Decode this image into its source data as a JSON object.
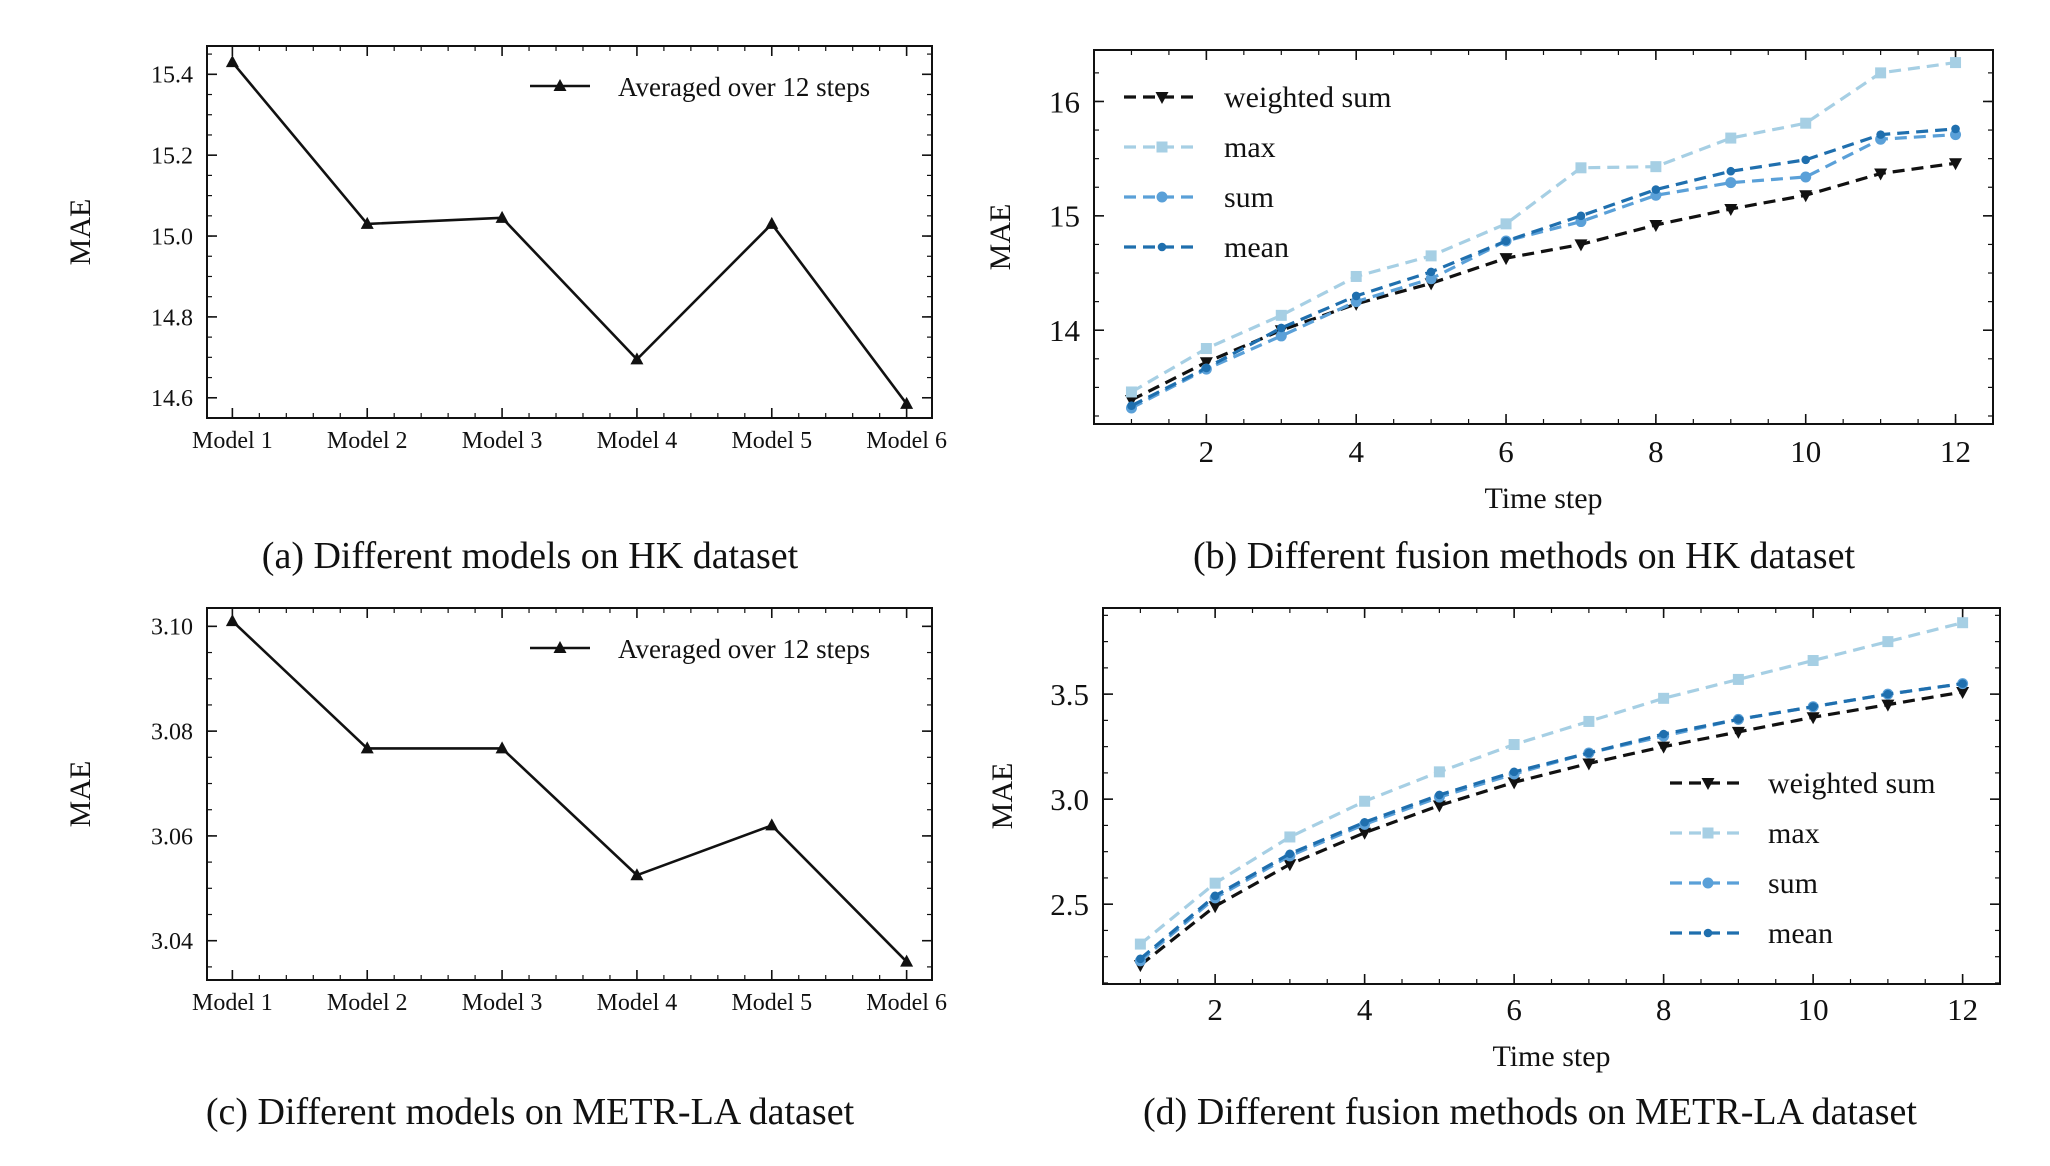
{
  "figure": {
    "captions": [
      "(a) Different models on HK dataset",
      "(b) Different fusion methods on HK dataset",
      "(c) Different models on METR-LA dataset",
      "(d) Different fusion methods on METR-LA dataset"
    ]
  },
  "chart_data": [
    {
      "id": "a",
      "type": "line",
      "caption": "(a) Different models on HK dataset",
      "categories": [
        "Model 1",
        "Model 2",
        "Model 3",
        "Model 4",
        "Model 5",
        "Model 6"
      ],
      "series": [
        {
          "name": "Averaged over 12 steps",
          "values": [
            15.43,
            15.03,
            15.045,
            14.695,
            15.03,
            14.585
          ],
          "color": "#111111",
          "marker": "triangle-up",
          "dashed": false
        }
      ],
      "xlabel": "",
      "ylabel": "MAE",
      "ylim": [
        14.55,
        15.47
      ],
      "yticks": [
        14.6,
        14.8,
        15.0,
        15.2,
        15.4
      ],
      "ytick_labels": [
        "14.6",
        "14.8",
        "15.0",
        "15.2",
        "15.4"
      ],
      "legend": "top-right",
      "grid": false
    },
    {
      "id": "b",
      "type": "line",
      "caption": "(b) Different fusion methods on HK dataset",
      "x": [
        1,
        2,
        3,
        4,
        5,
        6,
        7,
        8,
        9,
        10,
        11,
        12
      ],
      "series": [
        {
          "name": "weighted sum",
          "values": [
            13.39,
            13.72,
            14.0,
            14.23,
            14.41,
            14.63,
            14.75,
            14.92,
            15.06,
            15.18,
            15.37,
            15.46
          ],
          "color": "#111111",
          "marker": "triangle-down",
          "dashed": true
        },
        {
          "name": "max",
          "values": [
            13.46,
            13.84,
            14.13,
            14.47,
            14.65,
            14.93,
            15.42,
            15.43,
            15.68,
            15.81,
            16.25,
            16.34
          ],
          "color": "#a6cfe4",
          "marker": "square",
          "dashed": true
        },
        {
          "name": "sum",
          "values": [
            13.32,
            13.66,
            13.95,
            14.25,
            14.45,
            14.78,
            14.95,
            15.18,
            15.29,
            15.34,
            15.67,
            15.71
          ],
          "color": "#5aa0d8",
          "marker": "circle",
          "dashed": true
        },
        {
          "name": "mean",
          "values": [
            13.34,
            13.67,
            14.02,
            14.3,
            14.51,
            14.78,
            15.0,
            15.23,
            15.39,
            15.49,
            15.71,
            15.76
          ],
          "color": "#1f6fae",
          "marker": "dot",
          "dashed": true
        }
      ],
      "xlabel": "Time step",
      "ylabel": "MAE",
      "xlim": [
        0.5,
        12.5
      ],
      "ylim": [
        13.18,
        16.45
      ],
      "xticks": [
        2,
        4,
        6,
        8,
        10,
        12
      ],
      "xtick_labels": [
        "2",
        "4",
        "6",
        "8",
        "10",
        "12"
      ],
      "yticks": [
        14,
        15,
        16
      ],
      "ytick_labels": [
        "14",
        "15",
        "16"
      ],
      "legend": "top-left",
      "grid": false
    },
    {
      "id": "c",
      "type": "line",
      "caption": "(c) Different models on METR-LA dataset",
      "categories": [
        "Model 1",
        "Model 2",
        "Model 3",
        "Model 4",
        "Model 5",
        "Model 6"
      ],
      "series": [
        {
          "name": "Averaged over 12 steps",
          "values": [
            3.101,
            3.0767,
            3.0767,
            3.0525,
            3.062,
            3.036
          ],
          "color": "#111111",
          "marker": "triangle-up",
          "dashed": false
        }
      ],
      "xlabel": "",
      "ylabel": "MAE",
      "ylim": [
        3.0325,
        3.1035
      ],
      "yticks": [
        3.04,
        3.06,
        3.08,
        3.1
      ],
      "ytick_labels": [
        "3.04",
        "3.06",
        "3.08",
        "3.10"
      ],
      "legend": "top-right",
      "grid": false
    },
    {
      "id": "d",
      "type": "line",
      "caption": "(d) Different fusion methods on METR-LA dataset",
      "x": [
        1,
        2,
        3,
        4,
        5,
        6,
        7,
        8,
        9,
        10,
        11,
        12
      ],
      "series": [
        {
          "name": "weighted sum",
          "values": [
            2.21,
            2.49,
            2.69,
            2.84,
            2.97,
            3.08,
            3.17,
            3.25,
            3.32,
            3.39,
            3.45,
            3.51
          ],
          "color": "#111111",
          "marker": "triangle-down",
          "dashed": true
        },
        {
          "name": "max",
          "values": [
            2.31,
            2.6,
            2.82,
            2.99,
            3.13,
            3.26,
            3.37,
            3.48,
            3.57,
            3.66,
            3.75,
            3.84
          ],
          "color": "#a6cfe4",
          "marker": "square",
          "dashed": true
        },
        {
          "name": "sum",
          "values": [
            2.23,
            2.53,
            2.73,
            2.88,
            3.01,
            3.12,
            3.22,
            3.3,
            3.38,
            3.44,
            3.5,
            3.55
          ],
          "color": "#5aa0d8",
          "marker": "circle",
          "dashed": true
        },
        {
          "name": "mean",
          "values": [
            2.24,
            2.54,
            2.74,
            2.89,
            3.02,
            3.13,
            3.22,
            3.31,
            3.38,
            3.44,
            3.5,
            3.55
          ],
          "color": "#1f6fae",
          "marker": "dot",
          "dashed": true
        }
      ],
      "xlabel": "Time step",
      "ylabel": "MAE",
      "xlim": [
        0.5,
        12.5
      ],
      "ylim": [
        2.12,
        3.91
      ],
      "xticks": [
        2,
        4,
        6,
        8,
        10,
        12
      ],
      "xtick_labels": [
        "2",
        "4",
        "6",
        "8",
        "10",
        "12"
      ],
      "yticks": [
        2.5,
        3.0,
        3.5
      ],
      "ytick_labels": [
        "2.5",
        "3.0",
        "3.5"
      ],
      "legend": "center-right",
      "grid": false
    }
  ]
}
